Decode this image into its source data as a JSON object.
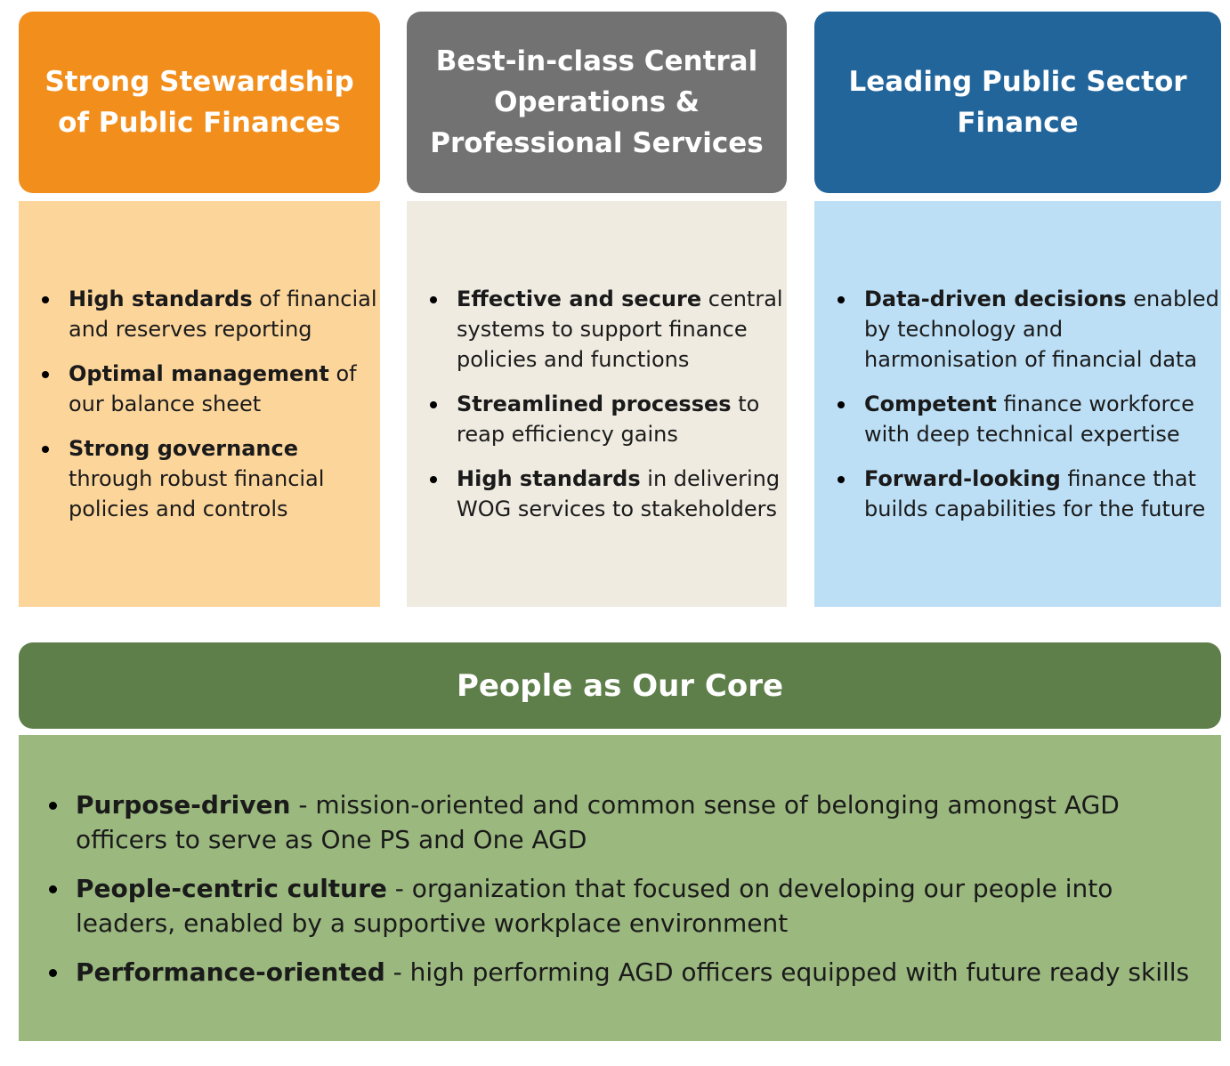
{
  "columns": [
    {
      "title": "Strong Stewardship of Public Finances",
      "color": "#f28e1c",
      "bg": "#fcd59b",
      "items": [
        {
          "bold": "High standards",
          "text": " of financial and reserves reporting"
        },
        {
          "bold": "Optimal management",
          "text": " of our balance sheet"
        },
        {
          "bold": "Strong governance",
          "text": " through robust financial policies and controls"
        }
      ]
    },
    {
      "title": "Best-in-class Central Operations & Professional Services",
      "color": "#727272",
      "bg": "#efebe1",
      "items": [
        {
          "bold": "Effective and secure",
          "text": " central systems to support finance policies and functions"
        },
        {
          "bold": "Streamlined processes",
          "text": " to reap efficiency gains"
        },
        {
          "bold": "High standards",
          "text": " in delivering WOG services to stakeholders"
        }
      ]
    },
    {
      "title": "Leading Public Sector Finance",
      "color": "#22659b",
      "bg": "#bcdff6",
      "items": [
        {
          "bold": "Data-driven decisions",
          "text": " enabled by technology and harmonisation of financial data"
        },
        {
          "bold": "Competent",
          "text": " finance workforce with deep technical expertise"
        },
        {
          "bold": "Forward-looking",
          "text": " finance that builds capabilities for the future"
        }
      ]
    }
  ],
  "core": {
    "title": "People as Our Core",
    "color": "#5e7e4a",
    "bg": "#9bb87f",
    "items": [
      {
        "bold": "Purpose-driven",
        "text": " - mission-oriented and common sense of belonging amongst AGD officers to serve as One PS and One AGD"
      },
      {
        "bold": "People-centric culture",
        "text": " - organization that focused on developing our people into leaders, enabled by a supportive workplace environment"
      },
      {
        "bold": "Performance-oriented",
        "text": " - high performing AGD officers equipped with future ready skills"
      }
    ]
  }
}
